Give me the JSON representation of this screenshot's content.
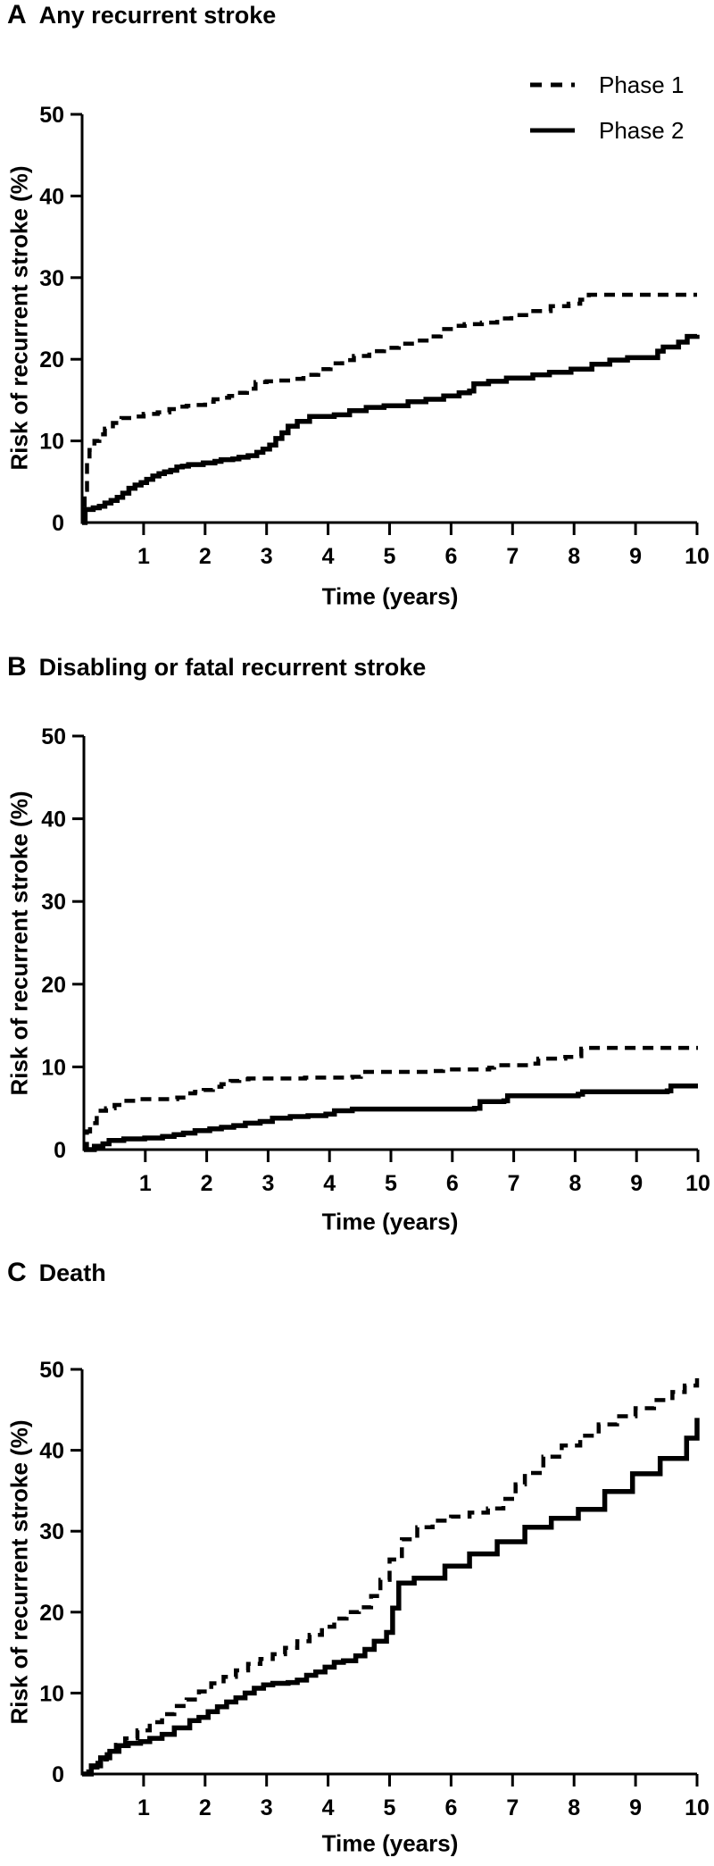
{
  "colors": {
    "line": "#000000",
    "background": "#ffffff",
    "text": "#000000"
  },
  "chart_data": [
    {
      "type": "line",
      "interpolation": "step-after",
      "panel": "A",
      "title": "Any recurrent stroke",
      "xlabel": "Time (years)",
      "ylabel": "Risk of recurrent stroke (%)",
      "xlim": [
        0,
        10
      ],
      "ylim": [
        0,
        50
      ],
      "xticks": [
        1,
        2,
        3,
        4,
        5,
        6,
        7,
        8,
        9,
        10
      ],
      "yticks": [
        0,
        10,
        20,
        30,
        40,
        50
      ],
      "grid": false,
      "legend": {
        "visible": true,
        "position": "top-right"
      },
      "series": [
        {
          "name": "Phase 1",
          "line_style": "dashed",
          "x": [
            0,
            0.04,
            0.08,
            0.12,
            0.2,
            0.28,
            0.37,
            0.5,
            0.64,
            0.81,
            1.0,
            1.23,
            1.42,
            1.56,
            1.7,
            1.85,
            2.0,
            2.14,
            2.24,
            2.39,
            2.53,
            2.68,
            2.82,
            3.0,
            3.2,
            3.4,
            3.6,
            3.84,
            4.04,
            4.23,
            4.42,
            4.67,
            4.91,
            5.15,
            5.4,
            5.64,
            5.83,
            6.03,
            6.22,
            6.5,
            6.75,
            6.98,
            7.27,
            7.62,
            7.91,
            8.1,
            8.24,
            10
          ],
          "y": [
            0,
            4,
            7.5,
            8.9,
            10,
            10.8,
            11.5,
            12.2,
            12.8,
            13,
            13.3,
            13.5,
            13.9,
            14.2,
            14.3,
            14.4,
            14.8,
            15.1,
            15.3,
            15.5,
            15.9,
            16.4,
            17.2,
            17.3,
            17.4,
            17.6,
            18.1,
            18.8,
            19.5,
            19.9,
            20.4,
            21,
            21.4,
            21.9,
            22.3,
            22.8,
            23.7,
            24.1,
            24.3,
            24.5,
            25,
            25.4,
            25.9,
            26.5,
            26.8,
            27.3,
            27.9,
            27.9
          ]
        },
        {
          "name": "Phase 2",
          "line_style": "solid",
          "x": [
            0,
            0.05,
            0.18,
            0.28,
            0.37,
            0.47,
            0.57,
            0.66,
            0.76,
            0.86,
            0.96,
            1.05,
            1.15,
            1.25,
            1.34,
            1.44,
            1.54,
            1.63,
            1.73,
            1.97,
            2.16,
            2.26,
            2.45,
            2.55,
            2.7,
            2.84,
            2.94,
            3.05,
            3.15,
            3.25,
            3.35,
            3.5,
            3.7,
            4.1,
            4.35,
            4.62,
            4.91,
            5.3,
            5.59,
            5.88,
            6.13,
            6.3,
            6.37,
            6.61,
            6.9,
            7.33,
            7.6,
            7.95,
            8.29,
            8.58,
            8.87,
            9.36,
            9.45,
            9.7,
            9.84,
            10
          ],
          "y": [
            0,
            1.6,
            1.8,
            2,
            2.4,
            2.7,
            3.1,
            3.6,
            4.2,
            4.6,
            4.9,
            5.3,
            5.7,
            6,
            6.2,
            6.4,
            6.8,
            6.9,
            7.1,
            7.3,
            7.5,
            7.7,
            7.8,
            8,
            8.2,
            8.6,
            9,
            9.5,
            10.3,
            11,
            11.8,
            12.4,
            13,
            13.2,
            13.7,
            14.1,
            14.3,
            14.8,
            15.1,
            15.5,
            15.9,
            16.1,
            17,
            17.3,
            17.7,
            18.1,
            18.4,
            18.8,
            19.4,
            19.9,
            20.2,
            21,
            21.5,
            22.1,
            22.8,
            23
          ]
        }
      ]
    },
    {
      "type": "line",
      "interpolation": "step-after",
      "panel": "B",
      "title": "Disabling or fatal recurrent stroke",
      "xlabel": "Time (years)",
      "ylabel": "Risk of recurrent stroke (%)",
      "xlim": [
        0,
        10
      ],
      "ylim": [
        0,
        50
      ],
      "xticks": [
        1,
        2,
        3,
        4,
        5,
        6,
        7,
        8,
        9,
        10
      ],
      "yticks": [
        0,
        10,
        20,
        30,
        40,
        50
      ],
      "grid": false,
      "legend": {
        "visible": false,
        "position": "top-right"
      },
      "series": [
        {
          "name": "Phase 1",
          "line_style": "dashed",
          "x": [
            0,
            0.05,
            0.1,
            0.21,
            0.36,
            0.5,
            0.65,
            0.84,
            1.52,
            1.66,
            1.81,
            1.95,
            2.1,
            2.24,
            2.39,
            2.53,
            2.68,
            3.6,
            4.37,
            4.51,
            5.6,
            5.85,
            6.6,
            6.68,
            7.27,
            7.4,
            7.84,
            8.03,
            8.1,
            8.22,
            10
          ],
          "y": [
            0,
            2.2,
            3.2,
            4.7,
            5,
            5.4,
            5.9,
            6.1,
            6.3,
            6.8,
            7,
            7.2,
            7.6,
            7.9,
            8.3,
            8.5,
            8.6,
            8.7,
            8.8,
            9.4,
            9.5,
            9.7,
            9.9,
            10.2,
            10.4,
            11,
            11.2,
            11.3,
            12.2,
            12.3,
            12.3
          ]
        },
        {
          "name": "Phase 2",
          "line_style": "solid",
          "x": [
            0,
            0.17,
            0.31,
            0.41,
            0.65,
            0.99,
            1.28,
            1.47,
            1.62,
            1.81,
            2.05,
            2.24,
            2.44,
            2.63,
            2.87,
            3.07,
            3.36,
            3.65,
            3.94,
            4.08,
            4.37,
            6.36,
            6.45,
            6.84,
            6.9,
            8.05,
            8.12,
            9.5,
            9.56,
            10
          ],
          "y": [
            0,
            0.4,
            0.7,
            1.1,
            1.3,
            1.4,
            1.6,
            1.8,
            2,
            2.3,
            2.5,
            2.7,
            2.9,
            3.2,
            3.4,
            3.8,
            4,
            4.1,
            4.3,
            4.7,
            4.9,
            5,
            5.8,
            5.9,
            6.5,
            6.7,
            7,
            7.1,
            7.7,
            7.7
          ]
        }
      ]
    },
    {
      "type": "line",
      "interpolation": "step-after",
      "panel": "C",
      "title": "Death",
      "xlabel": "Time (years)",
      "ylabel": "Risk of recurrent stroke (%)",
      "xlim": [
        0,
        10
      ],
      "ylim": [
        0,
        50
      ],
      "xticks": [
        1,
        2,
        3,
        4,
        5,
        6,
        7,
        8,
        9,
        10
      ],
      "yticks": [
        0,
        10,
        20,
        30,
        40,
        50
      ],
      "grid": false,
      "legend": {
        "visible": false,
        "position": "top-right"
      },
      "series": [
        {
          "name": "Phase 1",
          "line_style": "dashed",
          "x": [
            0,
            0.1,
            0.25,
            0.4,
            0.55,
            0.7,
            0.9,
            1.1,
            1.3,
            1.5,
            1.7,
            1.9,
            2.1,
            2.3,
            2.5,
            2.7,
            2.9,
            3.1,
            3.3,
            3.5,
            3.7,
            3.9,
            4.1,
            4.3,
            4.5,
            4.7,
            4.85,
            5.0,
            5.2,
            5.45,
            5.7,
            6.0,
            6.3,
            6.6,
            6.85,
            7.05,
            7.2,
            7.5,
            7.8,
            8.1,
            8.4,
            8.7,
            9.0,
            9.3,
            9.6,
            9.8,
            10
          ],
          "y": [
            0,
            0.8,
            1.8,
            2.8,
            3.6,
            4.4,
            5.4,
            6.4,
            7.4,
            8.4,
            9.2,
            10.2,
            11.2,
            12,
            12.8,
            13.6,
            14.2,
            14.8,
            15.6,
            16.4,
            17.2,
            18.2,
            19.2,
            20,
            20.6,
            22,
            24,
            26.5,
            29,
            30.5,
            31.3,
            31.8,
            32.3,
            32.8,
            34,
            35.8,
            37.2,
            39.2,
            40.6,
            41.8,
            43.2,
            44.2,
            45.2,
            46.2,
            47.2,
            48,
            49
          ]
        },
        {
          "name": "Phase 2",
          "line_style": "solid",
          "x": [
            0,
            0.15,
            0.3,
            0.45,
            0.6,
            0.75,
            0.95,
            1.1,
            1.3,
            1.5,
            1.75,
            1.9,
            2.05,
            2.2,
            2.35,
            2.5,
            2.65,
            2.8,
            2.95,
            3.1,
            3.35,
            3.5,
            3.65,
            3.8,
            3.95,
            4.1,
            4.25,
            4.45,
            4.6,
            4.75,
            4.95,
            5.05,
            5.15,
            5.4,
            5.9,
            6.3,
            6.75,
            7.2,
            7.63,
            8.07,
            8.5,
            8.95,
            9.4,
            9.83,
            10
          ],
          "y": [
            0,
            1,
            2,
            2.8,
            3.5,
            3.8,
            4,
            4.4,
            4.9,
            5.7,
            6.6,
            7,
            7.7,
            8.3,
            8.9,
            9.4,
            10,
            10.6,
            11,
            11.2,
            11.3,
            11.6,
            12.2,
            12.6,
            13.2,
            13.8,
            14,
            14.6,
            15.4,
            16.4,
            17.5,
            20.5,
            23.6,
            24.2,
            25.7,
            27.2,
            28.7,
            30.5,
            31.6,
            32.7,
            34.9,
            37.1,
            39,
            41.5,
            44
          ]
        }
      ]
    }
  ]
}
